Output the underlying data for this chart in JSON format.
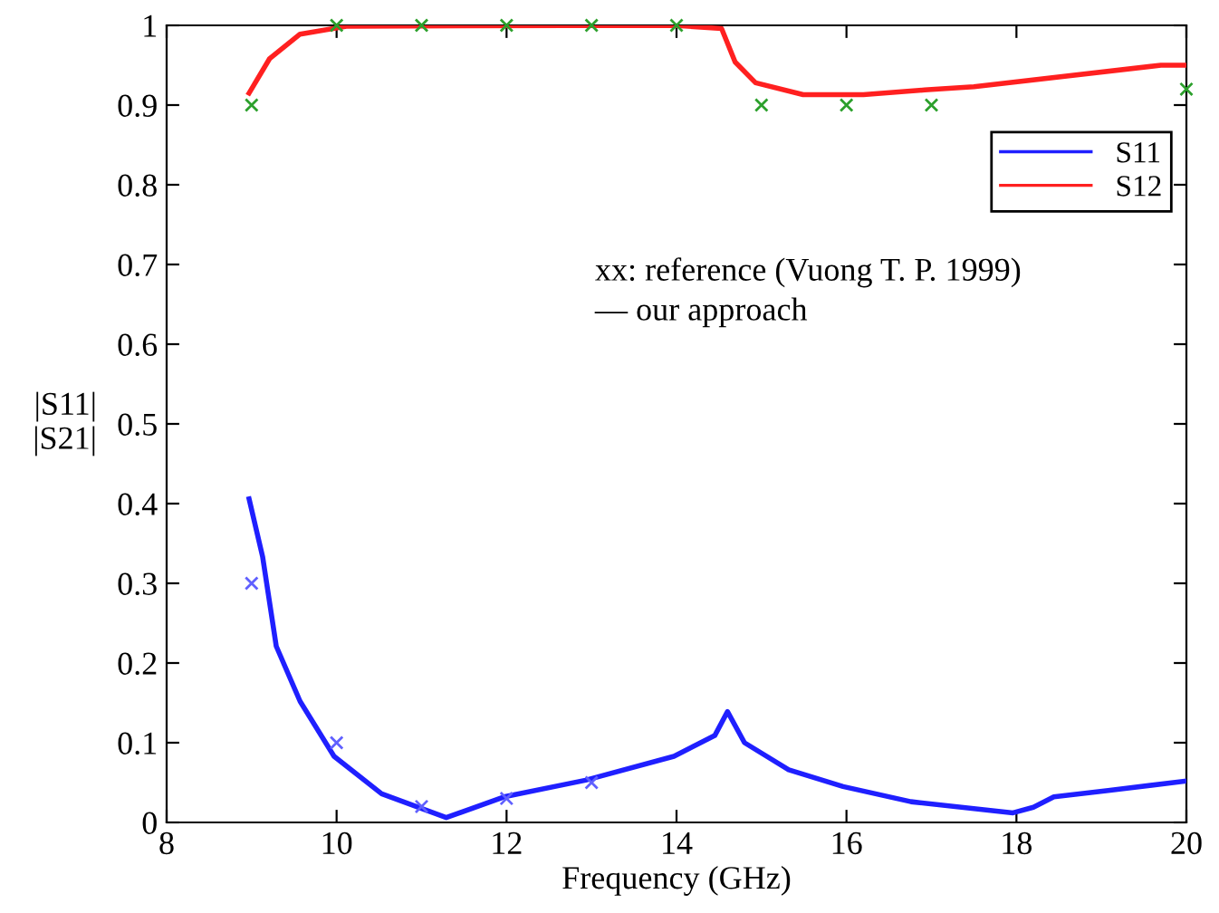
{
  "chart_data": {
    "type": "line",
    "xlabel": "Frequency (GHz)",
    "ylabel": "|S11|\n|S21|",
    "xlim": [
      8,
      20
    ],
    "ylim": [
      0,
      1
    ],
    "xticks": [
      8,
      10,
      12,
      14,
      16,
      18,
      20
    ],
    "yticks": [
      0,
      0.1,
      0.2,
      0.3,
      0.4,
      0.5,
      0.6,
      0.7,
      0.8,
      0.9,
      1
    ],
    "grid": false,
    "legend": "top right",
    "marker": "none",
    "line_style": "solid",
    "annotations": [
      "xx: reference (Vuong T. P. 1999)",
      "— our approach"
    ],
    "series": [
      {
        "name": "S11",
        "color": "#1f1fff",
        "x": [
          8.97,
          9.13,
          9.29,
          9.57,
          9.97,
          10.53,
          11.29,
          11.97,
          12.93,
          13.97,
          14.45,
          14.6,
          14.8,
          15.32,
          15.96,
          16.76,
          17.96,
          18.2,
          18.44,
          19.08,
          20
        ],
        "values": [
          0.406,
          0.333,
          0.221,
          0.152,
          0.083,
          0.036,
          0.006,
          0.032,
          0.053,
          0.083,
          0.109,
          0.139,
          0.1,
          0.066,
          0.045,
          0.026,
          0.012,
          0.019,
          0.032,
          0.04,
          0.052
        ]
      },
      {
        "name": "S12",
        "color": "#ff2020",
        "x": [
          8.97,
          9.21,
          9.57,
          10.13,
          13.97,
          14.53,
          14.69,
          14.93,
          15.49,
          16.2,
          16.92,
          17.5,
          19.7,
          20
        ],
        "values": [
          0.915,
          0.958,
          0.989,
          0.999,
          1.0,
          0.996,
          0.954,
          0.928,
          0.913,
          0.913,
          0.919,
          0.923,
          0.95,
          0.95
        ]
      },
      {
        "type": "scatter",
        "marker": "cross",
        "color": "#6060ff",
        "x": [
          9,
          10,
          11,
          12,
          13
        ],
        "values": [
          0.3,
          0.1,
          0.02,
          0.03,
          0.05
        ]
      },
      {
        "type": "scatter",
        "marker": "cross",
        "color": "#2ca02c",
        "x": [
          9,
          10,
          11,
          12,
          13,
          14,
          15,
          16,
          17,
          20
        ],
        "values": [
          0.9,
          1.0,
          1.0,
          1.0,
          1.0,
          1.0,
          0.9,
          0.9,
          0.9,
          0.92
        ]
      }
    ]
  }
}
